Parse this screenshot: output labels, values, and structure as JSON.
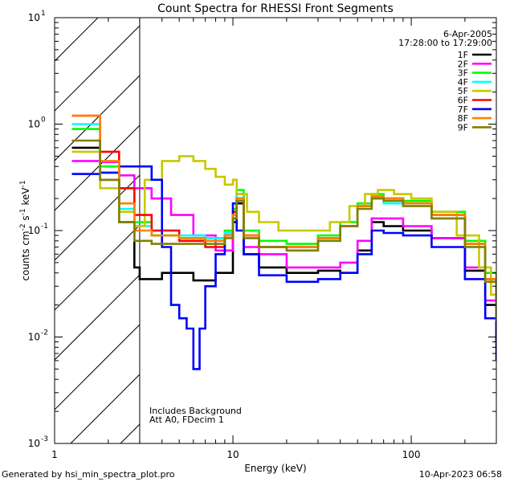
{
  "chart_data": {
    "type": "line",
    "title": "Count Spectra for RHESSI Front Segments",
    "xlabel": "Energy (keV)",
    "ylabel": "counts cm^-2 s^-1 keV^-1",
    "xscale": "log",
    "yscale": "log",
    "xlim": [
      1,
      300
    ],
    "ylim": [
      0.001,
      10
    ],
    "x_ticks": [
      {
        "value": 1,
        "label": "1"
      },
      {
        "value": 10,
        "label": "10"
      },
      {
        "value": 100,
        "label": "100"
      }
    ],
    "y_ticks": [
      {
        "value": 10,
        "base": "10",
        "exp": "1"
      },
      {
        "value": 1,
        "base": "10",
        "exp": "0"
      },
      {
        "value": 0.1,
        "base": "10",
        "exp": "-1"
      },
      {
        "value": 0.01,
        "base": "10",
        "exp": "-2"
      },
      {
        "value": 0.001,
        "base": "10",
        "exp": "-3"
      }
    ],
    "hatched_region_xmax": 3,
    "date_label": "6-Apr-2005",
    "time_label": "17:28:00 to 17:29:00",
    "notes": [
      "Includes Background",
      "Att A0, FDecim 1"
    ],
    "footer_left": "Generated by hsi_min_spectra_plot.pro",
    "footer_right": "10-Apr-2023 06:58",
    "legend_position": "top-right",
    "series": [
      {
        "name": "1F",
        "color": "#000000",
        "points": [
          [
            1.25,
            0.6
          ],
          [
            1.8,
            0.3
          ],
          [
            2.3,
            0.12
          ],
          [
            2.8,
            0.045
          ],
          [
            3,
            0.035
          ],
          [
            4,
            0.04
          ],
          [
            6,
            0.034
          ],
          [
            8,
            0.04
          ],
          [
            10,
            0.12
          ],
          [
            10.5,
            0.18
          ],
          [
            11.5,
            0.06
          ],
          [
            14,
            0.045
          ],
          [
            20,
            0.04
          ],
          [
            30,
            0.042
          ],
          [
            40,
            0.04
          ],
          [
            50,
            0.065
          ],
          [
            60,
            0.12
          ],
          [
            70,
            0.11
          ],
          [
            90,
            0.1
          ],
          [
            130,
            0.085
          ],
          [
            200,
            0.042
          ],
          [
            260,
            0.02
          ],
          [
            300,
            0.009
          ]
        ]
      },
      {
        "name": "2F",
        "color": "#ff00ff",
        "points": [
          [
            1.25,
            0.45
          ],
          [
            1.8,
            0.44
          ],
          [
            2.3,
            0.33
          ],
          [
            2.8,
            0.25
          ],
          [
            3.5,
            0.2
          ],
          [
            4.5,
            0.14
          ],
          [
            6,
            0.09
          ],
          [
            8,
            0.065
          ],
          [
            10,
            0.13
          ],
          [
            10.5,
            0.22
          ],
          [
            11.5,
            0.07
          ],
          [
            14,
            0.06
          ],
          [
            20,
            0.045
          ],
          [
            30,
            0.045
          ],
          [
            40,
            0.05
          ],
          [
            50,
            0.08
          ],
          [
            60,
            0.13
          ],
          [
            70,
            0.13
          ],
          [
            90,
            0.11
          ],
          [
            130,
            0.085
          ],
          [
            200,
            0.045
          ],
          [
            260,
            0.022
          ],
          [
            300,
            0.009
          ]
        ]
      },
      {
        "name": "3F",
        "color": "#00ff00",
        "points": [
          [
            1.25,
            0.9
          ],
          [
            1.8,
            0.4
          ],
          [
            2.3,
            0.25
          ],
          [
            2.8,
            0.12
          ],
          [
            3.5,
            0.09
          ],
          [
            5,
            0.085
          ],
          [
            7,
            0.085
          ],
          [
            9,
            0.1
          ],
          [
            10,
            0.16
          ],
          [
            10.5,
            0.24
          ],
          [
            11.5,
            0.1
          ],
          [
            14,
            0.08
          ],
          [
            20,
            0.075
          ],
          [
            30,
            0.09
          ],
          [
            40,
            0.12
          ],
          [
            50,
            0.18
          ],
          [
            60,
            0.22
          ],
          [
            70,
            0.2
          ],
          [
            90,
            0.19
          ],
          [
            130,
            0.15
          ],
          [
            200,
            0.08
          ],
          [
            260,
            0.04
          ],
          [
            300,
            0.02
          ]
        ]
      },
      {
        "name": "4F",
        "color": "#00ffff",
        "points": [
          [
            1.25,
            1.0
          ],
          [
            1.8,
            0.35
          ],
          [
            2.3,
            0.16
          ],
          [
            2.8,
            0.11
          ],
          [
            3.5,
            0.1
          ],
          [
            5,
            0.09
          ],
          [
            7,
            0.085
          ],
          [
            9,
            0.095
          ],
          [
            10,
            0.15
          ],
          [
            10.5,
            0.22
          ],
          [
            11.5,
            0.09
          ],
          [
            14,
            0.07
          ],
          [
            20,
            0.065
          ],
          [
            30,
            0.08
          ],
          [
            40,
            0.11
          ],
          [
            50,
            0.17
          ],
          [
            60,
            0.2
          ],
          [
            70,
            0.18
          ],
          [
            90,
            0.17
          ],
          [
            130,
            0.13
          ],
          [
            200,
            0.07
          ],
          [
            260,
            0.035
          ],
          [
            300,
            0.015
          ]
        ]
      },
      {
        "name": "5F",
        "color": "#c8c800",
        "points": [
          [
            1.25,
            0.55
          ],
          [
            1.8,
            0.25
          ],
          [
            2.3,
            0.15
          ],
          [
            2.8,
            0.11
          ],
          [
            3.2,
            0.3
          ],
          [
            4,
            0.45
          ],
          [
            5,
            0.5
          ],
          [
            6,
            0.45
          ],
          [
            7,
            0.38
          ],
          [
            8,
            0.32
          ],
          [
            9,
            0.27
          ],
          [
            10,
            0.3
          ],
          [
            10.5,
            0.22
          ],
          [
            12,
            0.15
          ],
          [
            14,
            0.12
          ],
          [
            18,
            0.1
          ],
          [
            25,
            0.1
          ],
          [
            35,
            0.12
          ],
          [
            45,
            0.17
          ],
          [
            55,
            0.22
          ],
          [
            65,
            0.24
          ],
          [
            80,
            0.22
          ],
          [
            100,
            0.2
          ],
          [
            130,
            0.15
          ],
          [
            180,
            0.09
          ],
          [
            240,
            0.045
          ],
          [
            280,
            0.025
          ],
          [
            300,
            0.015
          ]
        ]
      },
      {
        "name": "6F",
        "color": "#ff0000",
        "points": [
          [
            1.25,
            1.2
          ],
          [
            1.8,
            0.55
          ],
          [
            2.3,
            0.25
          ],
          [
            2.8,
            0.14
          ],
          [
            3.5,
            0.1
          ],
          [
            5,
            0.08
          ],
          [
            7,
            0.07
          ],
          [
            9,
            0.09
          ],
          [
            10,
            0.15
          ],
          [
            10.5,
            0.2
          ],
          [
            11.5,
            0.09
          ],
          [
            14,
            0.07
          ],
          [
            20,
            0.07
          ],
          [
            30,
            0.085
          ],
          [
            40,
            0.11
          ],
          [
            50,
            0.17
          ],
          [
            60,
            0.21
          ],
          [
            70,
            0.2
          ],
          [
            90,
            0.18
          ],
          [
            130,
            0.14
          ],
          [
            200,
            0.075
          ],
          [
            260,
            0.035
          ],
          [
            300,
            0.015
          ]
        ]
      },
      {
        "name": "7F",
        "color": "#0000ff",
        "points": [
          [
            1.25,
            0.34
          ],
          [
            1.8,
            0.35
          ],
          [
            2.3,
            0.4
          ],
          [
            3,
            0.4
          ],
          [
            3.5,
            0.3
          ],
          [
            4,
            0.07
          ],
          [
            4.5,
            0.02
          ],
          [
            5,
            0.015
          ],
          [
            5.5,
            0.012
          ],
          [
            6,
            0.005
          ],
          [
            6.5,
            0.012
          ],
          [
            7,
            0.03
          ],
          [
            8,
            0.06
          ],
          [
            9,
            0.09
          ],
          [
            10,
            0.18
          ],
          [
            10.5,
            0.1
          ],
          [
            11.5,
            0.06
          ],
          [
            14,
            0.038
          ],
          [
            20,
            0.033
          ],
          [
            30,
            0.035
          ],
          [
            40,
            0.04
          ],
          [
            50,
            0.06
          ],
          [
            60,
            0.1
          ],
          [
            70,
            0.095
          ],
          [
            90,
            0.09
          ],
          [
            130,
            0.07
          ],
          [
            200,
            0.035
          ],
          [
            260,
            0.015
          ],
          [
            300,
            0.006
          ]
        ]
      },
      {
        "name": "8F",
        "color": "#ff8000",
        "points": [
          [
            1.25,
            1.2
          ],
          [
            1.8,
            0.45
          ],
          [
            2.3,
            0.18
          ],
          [
            2.8,
            0.1
          ],
          [
            3.5,
            0.09
          ],
          [
            5,
            0.085
          ],
          [
            7,
            0.08
          ],
          [
            9,
            0.09
          ],
          [
            10,
            0.14
          ],
          [
            10.5,
            0.2
          ],
          [
            11.5,
            0.09
          ],
          [
            14,
            0.07
          ],
          [
            20,
            0.07
          ],
          [
            30,
            0.085
          ],
          [
            40,
            0.11
          ],
          [
            50,
            0.17
          ],
          [
            60,
            0.21
          ],
          [
            70,
            0.2
          ],
          [
            90,
            0.18
          ],
          [
            130,
            0.14
          ],
          [
            200,
            0.075
          ],
          [
            260,
            0.035
          ],
          [
            300,
            0.015
          ]
        ]
      },
      {
        "name": "9F",
        "color": "#808000",
        "points": [
          [
            1.25,
            0.7
          ],
          [
            1.8,
            0.3
          ],
          [
            2.3,
            0.12
          ],
          [
            2.8,
            0.08
          ],
          [
            3.5,
            0.075
          ],
          [
            5,
            0.075
          ],
          [
            7,
            0.075
          ],
          [
            9,
            0.085
          ],
          [
            10,
            0.13
          ],
          [
            10.5,
            0.19
          ],
          [
            11.5,
            0.085
          ],
          [
            14,
            0.07
          ],
          [
            20,
            0.065
          ],
          [
            30,
            0.08
          ],
          [
            40,
            0.11
          ],
          [
            50,
            0.16
          ],
          [
            60,
            0.2
          ],
          [
            70,
            0.19
          ],
          [
            90,
            0.17
          ],
          [
            130,
            0.13
          ],
          [
            200,
            0.07
          ],
          [
            260,
            0.033
          ],
          [
            300,
            0.014
          ]
        ]
      }
    ]
  }
}
